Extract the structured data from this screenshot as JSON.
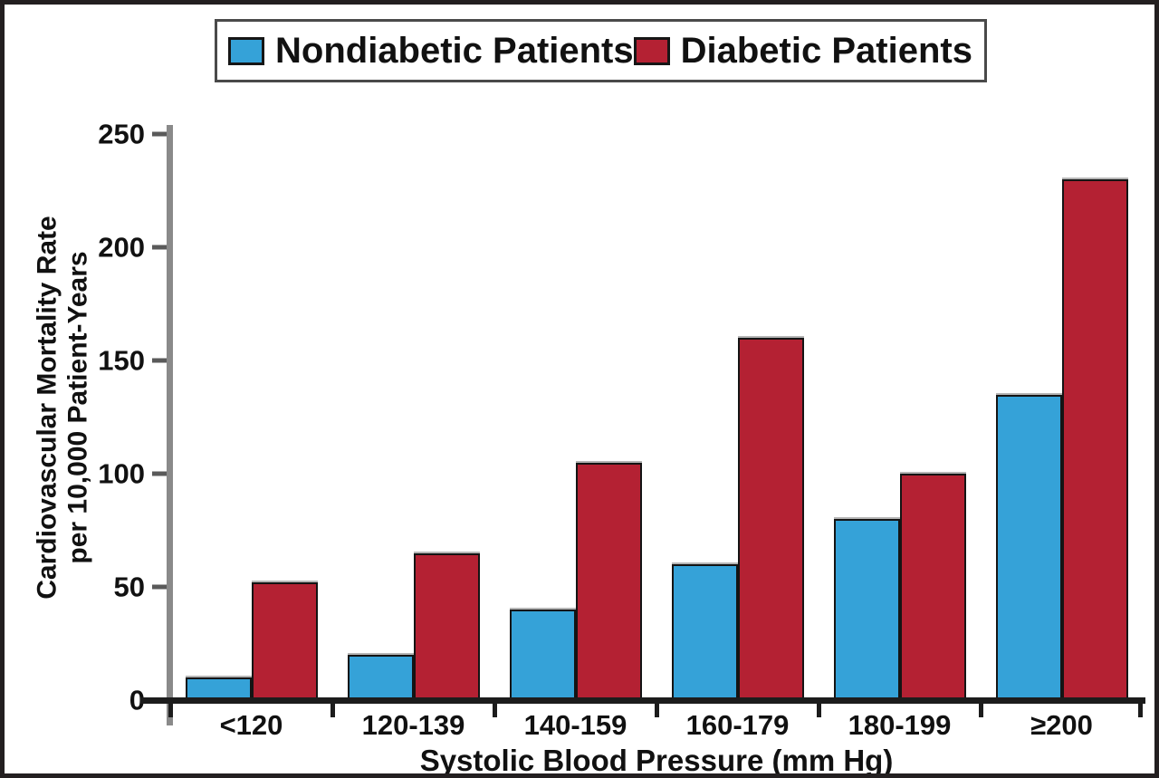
{
  "chart_data": {
    "type": "bar",
    "categories": [
      "<120",
      "120-139",
      "140-159",
      "160-179",
      "180-199",
      "≥200"
    ],
    "series": [
      {
        "name": "Nondiabetic Patients",
        "color": "#35A2D8",
        "values": [
          10,
          20,
          40,
          60,
          80,
          135
        ]
      },
      {
        "name": "Diabetic Patients",
        "color": "#B42133",
        "values": [
          52,
          65,
          105,
          160,
          100,
          230
        ]
      }
    ],
    "xlabel": "Systolic Blood Pressure (mm Hg)",
    "ylabel_line1": "Cardiovascular Mortality Rate",
    "ylabel_line2": "per 10,000 Patient-Years",
    "ylim": [
      0,
      250
    ],
    "yticks": [
      0,
      50,
      100,
      150,
      200,
      250
    ],
    "grid": false,
    "legend_position": "top",
    "axis_colors": {
      "y_axis": "#8a8a8a",
      "x_axis": "#1c1c1c",
      "frame_border": "#231f20"
    }
  }
}
